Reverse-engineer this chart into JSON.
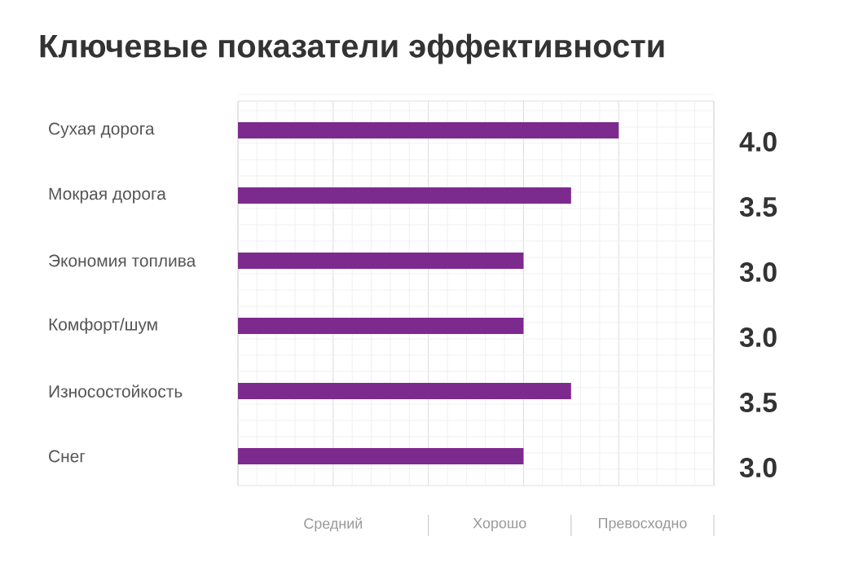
{
  "chart_data": {
    "type": "bar",
    "orientation": "horizontal",
    "title": "Ключевые показатели эффективности",
    "categories": [
      "Сухая дорога",
      "Мокрая дорога",
      "Экономия топлива",
      "Комфорт/шум",
      "Износостойкость",
      "Снег"
    ],
    "values": [
      4.0,
      3.5,
      3.0,
      3.0,
      3.5,
      3.0
    ],
    "value_labels": [
      "4.0",
      "3.5",
      "3.0",
      "3.0",
      "3.5",
      "3.0"
    ],
    "color": "#7d2a8e",
    "xlim": [
      0,
      5
    ],
    "tick_labels": "y",
    "annotations": [
      "Средний",
      "Хорошо",
      "Превосходно"
    ],
    "grid": true
  }
}
